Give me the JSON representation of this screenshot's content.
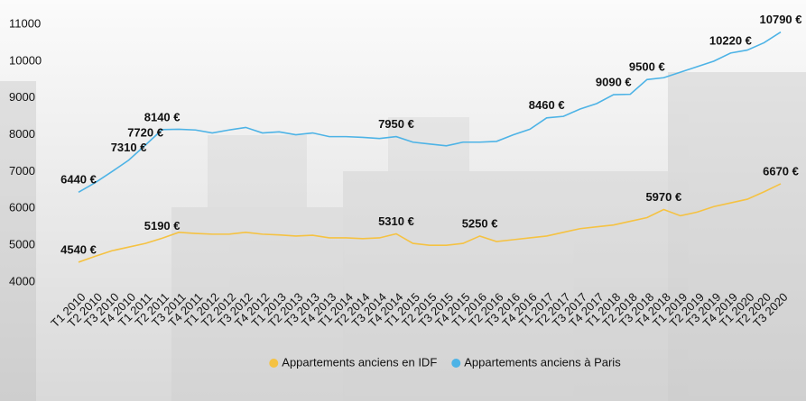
{
  "chart_data": {
    "type": "line",
    "categories": [
      "T1 2010",
      "T2 2010",
      "T3 2010",
      "T4 2010",
      "T1 2011",
      "T2 2011",
      "T3 2011",
      "T4 2011",
      "T1 2012",
      "T2 2012",
      "T3 2012",
      "T4 2012",
      "T1 2013",
      "T2 2013",
      "T3 2013",
      "T4 2013",
      "T1 2014",
      "T2 2014",
      "T3 2014",
      "T4 2014",
      "T1 2015",
      "T2 2015",
      "T3 2015",
      "T4 2015",
      "T1 2016",
      "T2 2016",
      "T3 2016",
      "T4 2016",
      "T1 2017",
      "T2 2017",
      "T3 2017",
      "T4 2017",
      "T1 2018",
      "T2 2018",
      "T3 2018",
      "T4 2018",
      "T1 2019",
      "T2 2019",
      "T3 2019",
      "T4 2019",
      "T1 2020",
      "T2 2020",
      "T3 2020"
    ],
    "series": [
      {
        "name": "Appartements anciens en IDF",
        "color": "#f5c242",
        "values": [
          4540,
          4700,
          4850,
          4950,
          5050,
          5190,
          5350,
          5320,
          5300,
          5300,
          5350,
          5300,
          5280,
          5250,
          5270,
          5200,
          5200,
          5180,
          5200,
          5310,
          5050,
          5000,
          5000,
          5050,
          5250,
          5100,
          5150,
          5200,
          5250,
          5350,
          5450,
          5500,
          5550,
          5650,
          5750,
          5970,
          5800,
          5900,
          6050,
          6150,
          6250,
          6450,
          6670
        ],
        "value_labels": [
          "4540 €",
          null,
          null,
          null,
          null,
          "5190 €",
          null,
          null,
          null,
          null,
          null,
          null,
          null,
          null,
          null,
          null,
          null,
          null,
          null,
          "5310 €",
          null,
          null,
          null,
          null,
          "5250 €",
          null,
          null,
          null,
          null,
          null,
          null,
          null,
          null,
          null,
          null,
          "5970 €",
          null,
          null,
          null,
          null,
          null,
          null,
          "6670 €"
        ]
      },
      {
        "name": "Appartements anciens à Paris",
        "color": "#4db3e6",
        "values": [
          6440,
          6700,
          7000,
          7310,
          7720,
          8140,
          8150,
          8130,
          8050,
          8130,
          8200,
          8050,
          8080,
          8000,
          8050,
          7950,
          7950,
          7930,
          7900,
          7950,
          7800,
          7750,
          7700,
          7800,
          7800,
          7820,
          8000,
          8150,
          8460,
          8500,
          8700,
          8850,
          9090,
          9100,
          9500,
          9550,
          9700,
          9850,
          10000,
          10220,
          10300,
          10500,
          10790
        ],
        "value_labels": [
          "6440 €",
          null,
          null,
          "7310 €",
          "7720 €",
          "8140 €",
          null,
          null,
          null,
          null,
          null,
          null,
          null,
          null,
          null,
          null,
          null,
          null,
          null,
          "7950 €",
          null,
          null,
          null,
          null,
          null,
          null,
          null,
          null,
          "8460 €",
          null,
          null,
          null,
          "9090 €",
          null,
          "9500 €",
          null,
          null,
          null,
          null,
          "10220 €",
          null,
          null,
          "10790 €"
        ]
      }
    ],
    "ylim": [
      4000,
      11000
    ],
    "yticks": [
      4000,
      5000,
      6000,
      7000,
      8000,
      9000,
      10000,
      11000
    ],
    "legend": "bottom"
  }
}
